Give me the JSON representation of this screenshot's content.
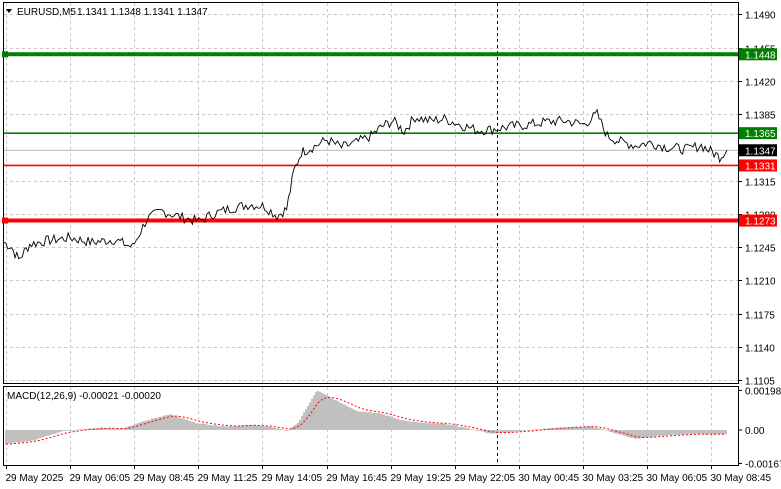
{
  "symbol_header": {
    "symbol": "EURUSD,M5",
    "ohlc": "1.1341 1.1348 1.1341 1.1347"
  },
  "price_axis": {
    "ticks": [
      "1.1490",
      "1.1455",
      "1.1420",
      "1.1385",
      "1.1315",
      "1.1280",
      "1.1245",
      "1.1210",
      "1.1175",
      "1.1140",
      "1.1105"
    ],
    "range": [
      1.1102,
      1.1502
    ]
  },
  "levels": [
    {
      "name": "upper-green",
      "value": 1.1448,
      "label": "1.1448",
      "color": "#008000",
      "thick": true
    },
    {
      "name": "lower-green",
      "value": 1.1365,
      "label": "1.1365",
      "color": "#008000",
      "thick": false
    },
    {
      "name": "upper-red",
      "value": 1.1331,
      "label": "1.1331",
      "color": "#ff0000",
      "thick": false
    },
    {
      "name": "lower-red",
      "value": 1.1273,
      "label": "1.1273",
      "color": "#ff0000",
      "thick": true
    }
  ],
  "current_price": {
    "label": "1.1347",
    "value": 1.1347
  },
  "macd": {
    "title": "MACD(12,26,9) -0.00021 -0.00020",
    "axis_ticks": [
      "0.00198",
      "0.00",
      "-0.00167"
    ],
    "range": [
      -0.00175,
      0.00215
    ],
    "histogram_color": "#c0c0c0",
    "signal_color": "#ff0000"
  },
  "time_axis": {
    "labels": [
      "29 May 2025",
      "29 May 06:05",
      "29 May 08:45",
      "29 May 11:25",
      "29 May 14:05",
      "29 May 16:45",
      "29 May 19:25",
      "29 May 22:05",
      "30 May 00:45",
      "30 May 03:25",
      "30 May 06:05",
      "30 May 08:45"
    ]
  },
  "chart_data": {
    "type": "line",
    "title": "EURUSD,M5",
    "series": [
      {
        "name": "EURUSD,M5",
        "x": [
          "29 May 2025",
          "29 May 06:05",
          "29 May 08:45",
          "29 May 11:25",
          "29 May 14:05",
          "29 May 16:45",
          "29 May 19:25",
          "29 May 22:05",
          "30 May 00:45",
          "30 May 03:25",
          "30 May 06:05",
          "30 May 08:45"
        ],
        "values": [
          1.1252,
          1.1253,
          1.1277,
          1.1281,
          1.1285,
          1.1365,
          1.1373,
          1.1367,
          1.1372,
          1.1357,
          1.135,
          1.1347
        ]
      }
    ],
    "ylim": [
      1.1102,
      1.1502
    ]
  }
}
